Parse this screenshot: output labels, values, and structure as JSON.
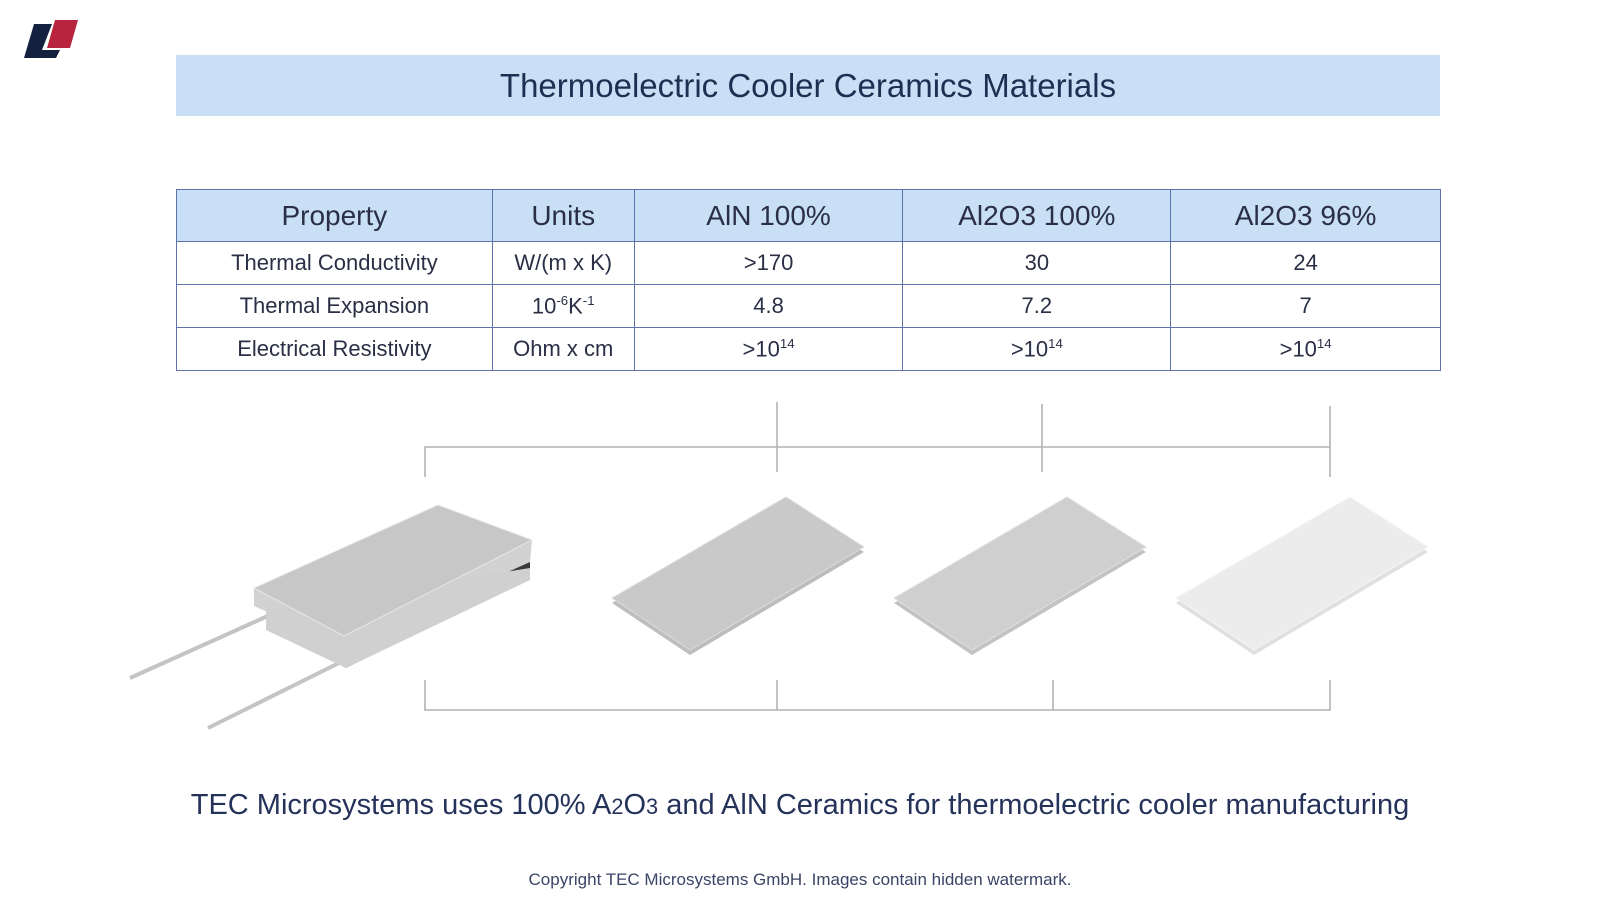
{
  "header": {
    "title": "Thermoelectric Cooler Ceramics Materials"
  },
  "table": {
    "columns": [
      "Property",
      "Units",
      "AlN 100%",
      "Al2O3 100%",
      "Al2O3 96%"
    ],
    "rows": [
      [
        "Thermal Conductivity",
        "W/(m x K)",
        ">170",
        "30",
        "24"
      ],
      [
        "Thermal Expansion",
        [
          {
            "text": "10"
          },
          {
            "sup": "-6"
          },
          {
            "text": "K"
          },
          {
            "sup": "-1"
          }
        ],
        "4.8",
        "7.2",
        "7"
      ],
      [
        "Electrical Resistivity",
        "Ohm x cm",
        [
          {
            "text": ">10"
          },
          {
            "sup": "14"
          }
        ],
        [
          {
            "text": ">10"
          },
          {
            "sup": "14"
          }
        ],
        [
          {
            "text": ">10"
          },
          {
            "sup": "14"
          }
        ]
      ]
    ]
  },
  "caption": [
    {
      "text": "TEC Microsystems uses 100% A"
    },
    {
      "sub": "2"
    },
    {
      "text": "O"
    },
    {
      "sub": "3"
    },
    {
      "text": " and AlN Ceramics for thermoelectric cooler manufacturing"
    }
  ],
  "footer": {
    "copyright": "Copyright TEC Microsystems GmbH. Images contain hidden watermark."
  }
}
